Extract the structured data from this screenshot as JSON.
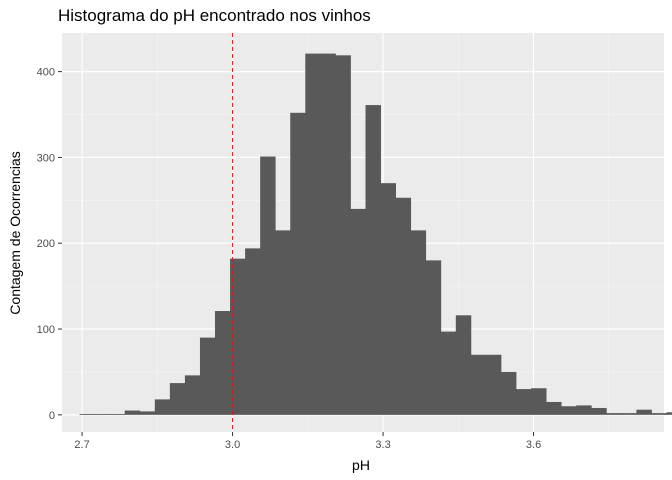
{
  "chart_data": {
    "type": "bar",
    "subtype": "histogram",
    "title": "Histograma do pH encontrado nos vinhos",
    "xlabel": "pH",
    "ylabel": "Contagem de Ocorrencias",
    "xlim": [
      2.66,
      3.86
    ],
    "ylim": [
      -20,
      445
    ],
    "x_ticks": [
      2.7,
      3.0,
      3.3,
      3.6
    ],
    "x_tick_labels": [
      "2.7",
      "3.0",
      "3.3",
      "3.6"
    ],
    "y_ticks": [
      0,
      100,
      200,
      300,
      400
    ],
    "y_tick_labels": [
      "0",
      "100",
      "200",
      "300",
      "400"
    ],
    "bin_start": 2.695,
    "bin_width": 0.03,
    "values": [
      1,
      1,
      1,
      5,
      4,
      18,
      37,
      46,
      90,
      121,
      182,
      194,
      301,
      215,
      352,
      421,
      421,
      419,
      240,
      361,
      270,
      253,
      215,
      180,
      97,
      116,
      70,
      70,
      50,
      30,
      31,
      15,
      10,
      11,
      8,
      2,
      2,
      6,
      2,
      3
    ],
    "reference_line": {
      "x": 3.0,
      "color": "#cc1f1a",
      "style": "dashed"
    },
    "bar_color": "#595959",
    "panel_color": "#ebebeb",
    "grid": true,
    "legend": "none"
  }
}
